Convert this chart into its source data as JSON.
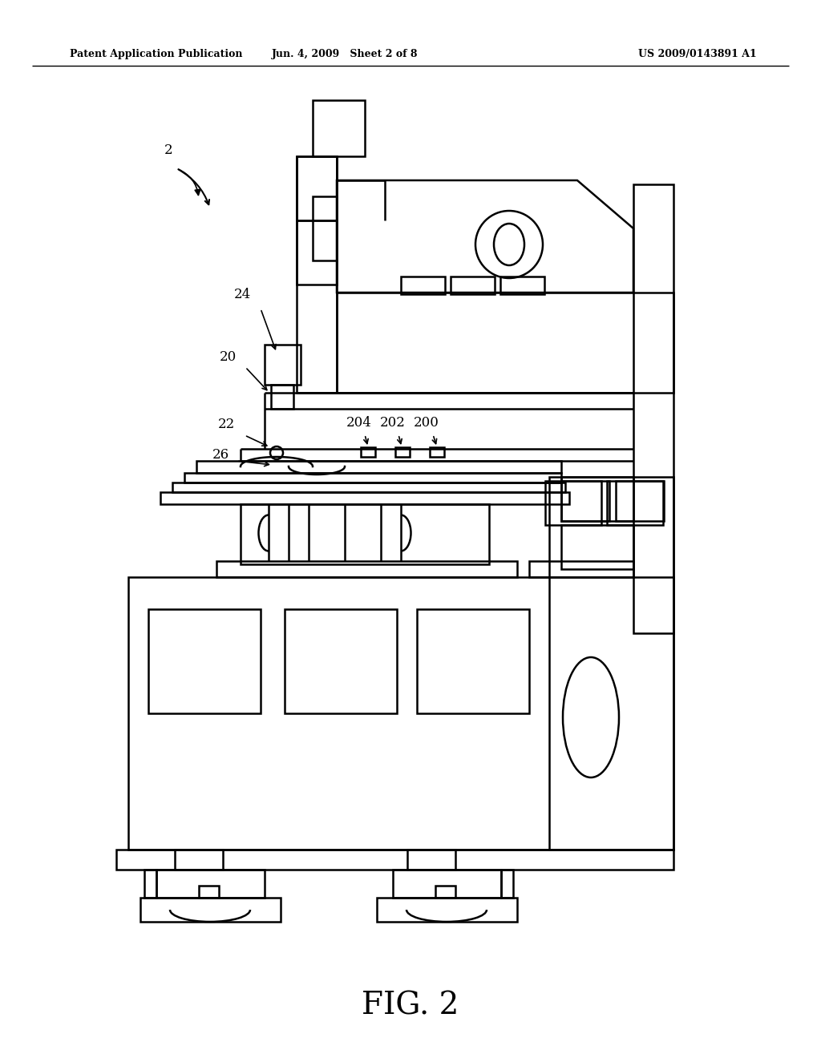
{
  "bg_color": "#ffffff",
  "line_color": "#000000",
  "header_left": "Patent Application Publication",
  "header_mid": "Jun. 4, 2009   Sheet 2 of 8",
  "header_right": "US 2009/0143891 A1",
  "figure_label": "FIG. 2"
}
